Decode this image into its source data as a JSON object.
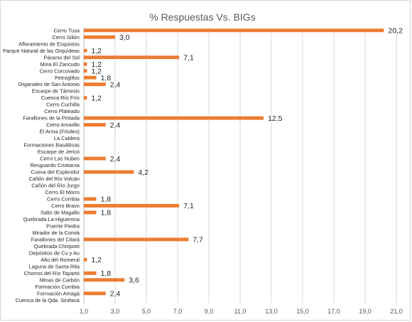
{
  "chart_data": {
    "type": "bar",
    "orientation": "horizontal",
    "title": "% Respuestas Vs. BIGs",
    "xlabel": "",
    "ylabel": "",
    "xlim": [
      1.0,
      21.0
    ],
    "x_ticks": [
      "1,0",
      "3,0",
      "5,0",
      "7,0",
      "9,0",
      "11,0",
      "13,0",
      "15,0",
      "17,0",
      "19,0",
      "21,0"
    ],
    "grid": true,
    "legend": "none",
    "bar_color": "#ED7D31",
    "categories": [
      "Cerro Tusa",
      "Cerro Silión",
      "Afloramiento de Esquistos",
      "Parque Natural de las Orquídeas",
      "Páramo del Sol",
      "Mina El Zancudo",
      "Cerro Corcovado",
      "Petroglifos",
      "Organales de San Antonio",
      "Escarpe de Támesis",
      "Cuenca Río Frío",
      "Cerro Cuchilla",
      "Cerro Plateado",
      "Farallones de la Pintada",
      "Cerro Amarillo",
      "El Arma (Fósiles)",
      "La Caldera",
      "Formaciones Basálticas",
      "Escarpe de Jericó",
      "Cerro Las Nubes",
      "Resguardo Cristianía",
      "Cueva del Esplendor",
      "Cañón del Río Volcán",
      "Cañón del Río Jurgo",
      "Cerro El Morro",
      "Cerro Combia",
      "Cerro Bravo",
      "Salto de Magallo",
      "Quebrada La Higuerona",
      "Puente Piedra",
      "Mirador de la Comiá",
      "Farallones del Citará",
      "Quebrada Chiripotó",
      "Depósitos de Cu y Au",
      "Alto del Romeral",
      "Laguna de Santa Rita",
      "Chorros del Río Tapartó",
      "Minas de Carbón",
      "Formación Combia",
      "Formación Amagá",
      "Cuenca de la Qda. Sinifaná"
    ],
    "values": [
      20.2,
      3.0,
      null,
      1.2,
      7.1,
      1.2,
      1.2,
      1.8,
      2.4,
      null,
      1.2,
      null,
      null,
      12.5,
      2.4,
      null,
      null,
      null,
      null,
      2.4,
      null,
      4.2,
      null,
      null,
      null,
      1.8,
      7.1,
      1.8,
      null,
      null,
      null,
      7.7,
      null,
      null,
      1.2,
      null,
      1.8,
      3.6,
      null,
      2.4,
      null
    ],
    "data_labels": [
      "20,2",
      "3,0",
      "",
      "1,2",
      "7,1",
      "1,2",
      "1,2",
      "1,8",
      "2,4",
      "",
      "1,2",
      "",
      "",
      "12,5",
      "2,4",
      "",
      "",
      "",
      "",
      "2,4",
      "",
      "4,2",
      "",
      "",
      "",
      "1,8",
      "7,1",
      "1,8",
      "",
      "",
      "",
      "7,7",
      "",
      "",
      "1,2",
      "",
      "1,8",
      "3,6",
      "",
      "2,4",
      ""
    ]
  }
}
